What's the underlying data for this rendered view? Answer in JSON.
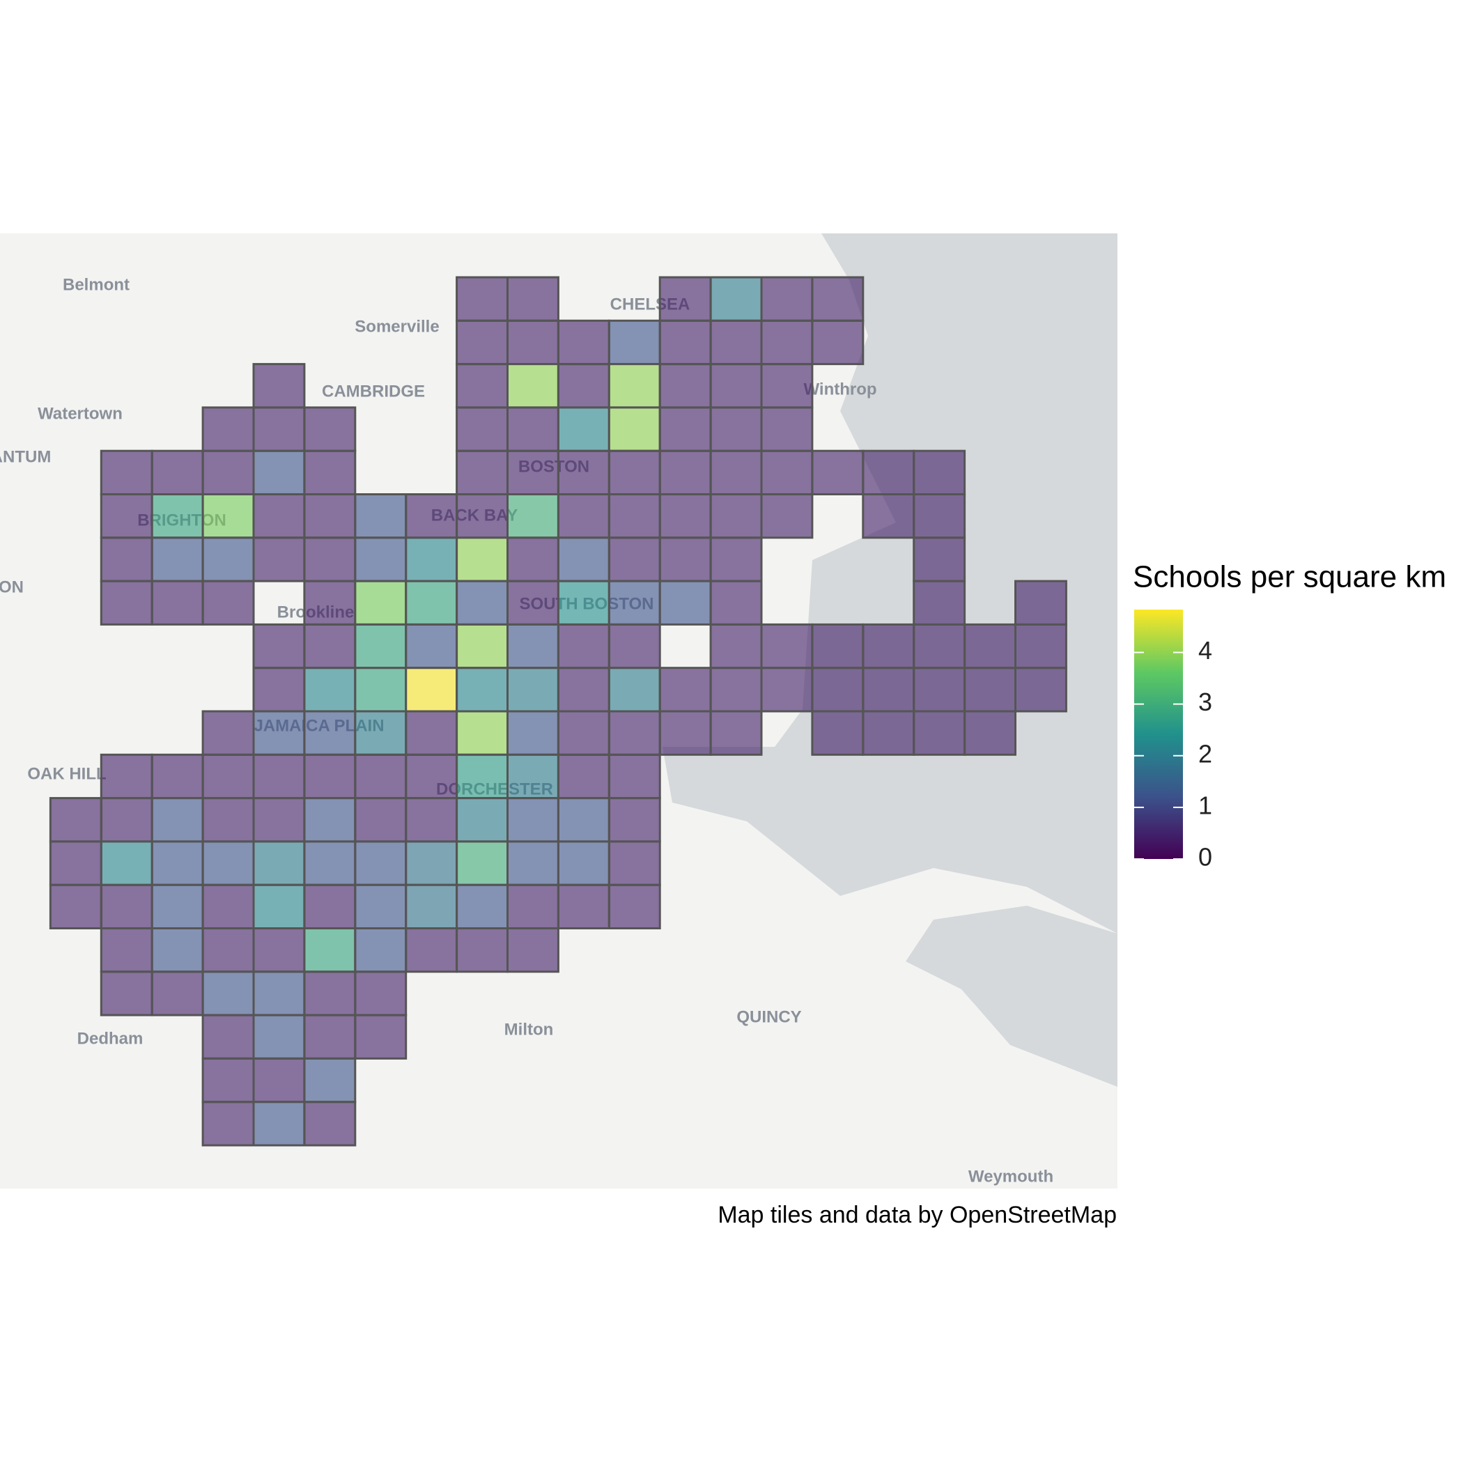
{
  "chart_data": {
    "type": "heatmap",
    "colormap": "viridis",
    "legend_title": "Schools per square km",
    "zlim": [
      0,
      4.83
    ],
    "zticks": [
      0,
      1,
      2,
      3,
      4
    ],
    "attribution": "Map tiles and data by OpenStreetMap",
    "map_labels": [
      "Belmont",
      "Somerville",
      "CAMBRIDGE",
      "Watertown",
      "CHELSEA",
      "Winthrop",
      "BOSTON",
      "BRIGHTON",
      "BACK BAY",
      "Brookline",
      "SOUTH BOSTON",
      "JAMAICA PLAIN",
      "OAK HILL",
      "DORCHESTER",
      "QUINCY",
      "Milton",
      "Dedham",
      "Weymouth",
      "ANTUM",
      "ON"
    ],
    "values": [
      [
        null,
        null,
        null,
        null,
        null,
        null,
        null,
        null,
        0.4,
        0.4,
        null,
        null,
        0.4,
        2.0,
        0.4,
        0.4,
        null,
        null,
        null,
        null
      ],
      [
        null,
        null,
        null,
        null,
        null,
        null,
        null,
        null,
        0.4,
        0.4,
        0.4,
        1.2,
        0.4,
        0.4,
        0.4,
        0.4,
        null,
        null,
        null,
        null
      ],
      [
        null,
        null,
        null,
        null,
        0.4,
        null,
        null,
        null,
        0.4,
        4.0,
        0.4,
        4.0,
        0.4,
        0.4,
        0.4,
        null,
        null,
        null,
        null,
        null
      ],
      [
        null,
        null,
        null,
        0.4,
        0.4,
        0.4,
        null,
        null,
        0.4,
        0.4,
        2.2,
        4.0,
        0.4,
        0.4,
        0.4,
        null,
        null,
        null,
        null,
        null
      ],
      [
        null,
        0.4,
        0.4,
        0.4,
        1.2,
        0.4,
        null,
        null,
        0.4,
        0.4,
        0.4,
        0.4,
        0.4,
        0.4,
        0.4,
        0.4,
        0.4,
        0.4,
        null,
        null
      ],
      [
        null,
        0.4,
        2.8,
        3.8,
        0.4,
        0.4,
        1.2,
        0.4,
        0.4,
        3.0,
        0.4,
        0.4,
        0.4,
        0.4,
        0.4,
        null,
        0.4,
        0.4,
        null,
        null
      ],
      [
        null,
        0.4,
        1.2,
        1.2,
        0.4,
        0.4,
        1.2,
        2.2,
        4.0,
        0.4,
        1.2,
        0.4,
        0.4,
        0.4,
        null,
        null,
        null,
        0.4,
        null,
        null
      ],
      [
        null,
        0.4,
        0.4,
        0.4,
        null,
        0.4,
        3.8,
        2.8,
        1.2,
        0.4,
        2.4,
        1.2,
        1.2,
        0.4,
        null,
        null,
        null,
        0.4,
        null,
        0.4
      ],
      [
        null,
        null,
        null,
        null,
        0.4,
        0.4,
        2.8,
        1.2,
        4.0,
        1.2,
        0.4,
        0.4,
        null,
        0.4,
        0.4,
        0.4,
        0.4,
        0.4,
        0.4,
        0.4
      ],
      [
        null,
        null,
        null,
        null,
        0.4,
        2.2,
        2.8,
        4.8,
        2.2,
        2.0,
        0.4,
        2.0,
        0.4,
        0.4,
        0.4,
        0.4,
        0.4,
        0.4,
        0.4,
        0.4
      ],
      [
        null,
        null,
        null,
        0.4,
        1.2,
        1.2,
        2.0,
        0.4,
        4.0,
        1.2,
        0.4,
        0.4,
        0.4,
        0.4,
        null,
        0.4,
        0.4,
        0.4,
        0.4,
        null
      ],
      [
        null,
        0.4,
        0.4,
        0.4,
        0.4,
        0.4,
        0.4,
        0.4,
        2.6,
        2.0,
        0.4,
        0.4,
        null,
        null,
        null,
        null,
        null,
        null,
        null,
        null
      ],
      [
        0.4,
        0.4,
        1.2,
        0.4,
        0.4,
        1.2,
        0.4,
        0.4,
        2.0,
        1.2,
        1.2,
        0.4,
        null,
        null,
        null,
        null,
        null,
        null,
        null,
        null
      ],
      [
        0.4,
        2.2,
        1.2,
        1.2,
        2.0,
        1.2,
        1.2,
        1.8,
        3.0,
        1.2,
        1.2,
        0.4,
        null,
        null,
        null,
        null,
        null,
        null,
        null,
        null
      ],
      [
        0.4,
        0.4,
        1.2,
        0.4,
        2.2,
        0.4,
        1.2,
        1.8,
        1.2,
        0.4,
        0.4,
        0.4,
        null,
        null,
        null,
        null,
        null,
        null,
        null,
        null
      ],
      [
        null,
        0.4,
        1.2,
        0.4,
        0.4,
        2.8,
        1.2,
        0.4,
        0.4,
        0.4,
        null,
        null,
        null,
        null,
        null,
        null,
        null,
        null,
        null,
        null
      ],
      [
        null,
        0.4,
        0.4,
        1.2,
        1.2,
        0.4,
        0.4,
        null,
        null,
        null,
        null,
        null,
        null,
        null,
        null,
        null,
        null,
        null,
        null,
        null
      ],
      [
        null,
        null,
        null,
        0.4,
        1.2,
        0.4,
        0.4,
        null,
        null,
        null,
        null,
        null,
        null,
        null,
        null,
        null,
        null,
        null,
        null,
        null
      ],
      [
        null,
        null,
        null,
        0.4,
        0.4,
        1.2,
        null,
        null,
        null,
        null,
        null,
        null,
        null,
        null,
        null,
        null,
        null,
        null,
        null,
        null
      ],
      [
        null,
        null,
        null,
        0.4,
        1.2,
        0.4,
        null,
        null,
        null,
        null,
        null,
        null,
        null,
        null,
        null,
        null,
        null,
        null,
        null,
        null
      ]
    ]
  }
}
